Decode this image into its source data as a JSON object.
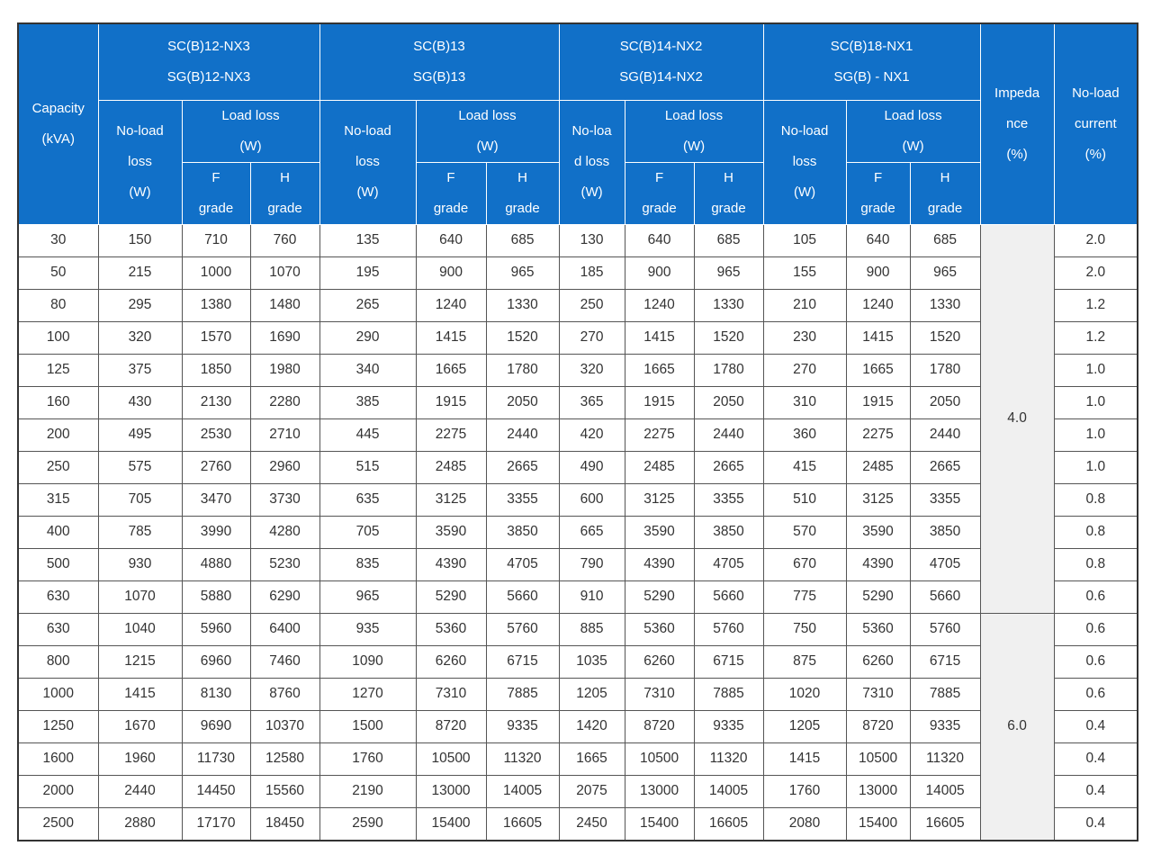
{
  "header": {
    "capacity": [
      "Capacity",
      "(kVA)"
    ],
    "groups": [
      {
        "models": [
          "SC(B)12-NX3",
          "SG(B)12-NX3"
        ],
        "no_load": [
          "No-load",
          "loss",
          "(W)"
        ],
        "load_loss": [
          "Load loss",
          "(W)"
        ],
        "f": [
          "F",
          "grade"
        ],
        "h": [
          "H",
          "grade"
        ]
      },
      {
        "models": [
          "SC(B)13",
          "SG(B)13"
        ],
        "no_load": [
          "No-load",
          "loss",
          "(W)"
        ],
        "load_loss": [
          "Load loss",
          "(W)"
        ],
        "f": [
          "F",
          "grade"
        ],
        "h": [
          "H",
          "grade"
        ]
      },
      {
        "models": [
          "SC(B)14-NX2",
          "SG(B)14-NX2"
        ],
        "no_load": [
          "No-loa",
          "d loss",
          "(W)"
        ],
        "load_loss": [
          "Load loss",
          "(W)"
        ],
        "f": [
          "F",
          "grade"
        ],
        "h": [
          "H",
          "grade"
        ]
      },
      {
        "models": [
          "SC(B)18-NX1",
          "SG(B) - NX1"
        ],
        "no_load": [
          "No-load",
          "loss",
          "(W)"
        ],
        "load_loss": [
          "Load loss",
          "(W)"
        ],
        "f": [
          "F",
          "grade"
        ],
        "h": [
          "H",
          "grade"
        ]
      }
    ],
    "impedance": [
      "Impeda",
      "nce",
      "(%)"
    ],
    "no_load_current": [
      "No-load",
      "current",
      "(%)"
    ]
  },
  "impedance": [
    "4.0",
    "6.0"
  ],
  "rows": [
    {
      "capacity": 30,
      "cells": [
        150,
        710,
        760,
        135,
        640,
        685,
        130,
        640,
        685,
        105,
        640,
        685
      ],
      "current": "2.0"
    },
    {
      "capacity": 50,
      "cells": [
        215,
        1000,
        1070,
        195,
        900,
        965,
        185,
        900,
        965,
        155,
        900,
        965
      ],
      "current": "2.0"
    },
    {
      "capacity": 80,
      "cells": [
        295,
        1380,
        1480,
        265,
        1240,
        1330,
        250,
        1240,
        1330,
        210,
        1240,
        1330
      ],
      "current": "1.2"
    },
    {
      "capacity": 100,
      "cells": [
        320,
        1570,
        1690,
        290,
        1415,
        1520,
        270,
        1415,
        1520,
        230,
        1415,
        1520
      ],
      "current": "1.2"
    },
    {
      "capacity": 125,
      "cells": [
        375,
        1850,
        1980,
        340,
        1665,
        1780,
        320,
        1665,
        1780,
        270,
        1665,
        1780
      ],
      "current": "1.0"
    },
    {
      "capacity": 160,
      "cells": [
        430,
        2130,
        2280,
        385,
        1915,
        2050,
        365,
        1915,
        2050,
        310,
        1915,
        2050
      ],
      "current": "1.0"
    },
    {
      "capacity": 200,
      "cells": [
        495,
        2530,
        2710,
        445,
        2275,
        2440,
        420,
        2275,
        2440,
        360,
        2275,
        2440
      ],
      "current": "1.0"
    },
    {
      "capacity": 250,
      "cells": [
        575,
        2760,
        2960,
        515,
        2485,
        2665,
        490,
        2485,
        2665,
        415,
        2485,
        2665
      ],
      "current": "1.0"
    },
    {
      "capacity": 315,
      "cells": [
        705,
        3470,
        3730,
        635,
        3125,
        3355,
        600,
        3125,
        3355,
        510,
        3125,
        3355
      ],
      "current": "0.8"
    },
    {
      "capacity": 400,
      "cells": [
        785,
        3990,
        4280,
        705,
        3590,
        3850,
        665,
        3590,
        3850,
        570,
        3590,
        3850
      ],
      "current": "0.8"
    },
    {
      "capacity": 500,
      "cells": [
        930,
        4880,
        5230,
        835,
        4390,
        4705,
        790,
        4390,
        4705,
        670,
        4390,
        4705
      ],
      "current": "0.8"
    },
    {
      "capacity": 630,
      "cells": [
        1070,
        5880,
        6290,
        965,
        5290,
        5660,
        910,
        5290,
        5660,
        775,
        5290,
        5660
      ],
      "current": "0.6"
    },
    {
      "capacity": 630,
      "cells": [
        1040,
        5960,
        6400,
        935,
        5360,
        5760,
        885,
        5360,
        5760,
        750,
        5360,
        5760
      ],
      "current": "0.6"
    },
    {
      "capacity": 800,
      "cells": [
        1215,
        6960,
        7460,
        1090,
        6260,
        6715,
        1035,
        6260,
        6715,
        875,
        6260,
        6715
      ],
      "current": "0.6"
    },
    {
      "capacity": 1000,
      "cells": [
        1415,
        8130,
        8760,
        1270,
        7310,
        7885,
        1205,
        7310,
        7885,
        1020,
        7310,
        7885
      ],
      "current": "0.6"
    },
    {
      "capacity": 1250,
      "cells": [
        1670,
        9690,
        10370,
        1500,
        8720,
        9335,
        1420,
        8720,
        9335,
        1205,
        8720,
        9335
      ],
      "current": "0.4"
    },
    {
      "capacity": 1600,
      "cells": [
        1960,
        11730,
        12580,
        1760,
        10500,
        11320,
        1665,
        10500,
        11320,
        1415,
        10500,
        11320
      ],
      "current": "0.4"
    },
    {
      "capacity": 2000,
      "cells": [
        2440,
        14450,
        15560,
        2190,
        13000,
        14005,
        2075,
        13000,
        14005,
        1760,
        13000,
        14005
      ],
      "current": "0.4"
    },
    {
      "capacity": 2500,
      "cells": [
        2880,
        17170,
        18450,
        2590,
        15400,
        16605,
        2450,
        15400,
        16605,
        2080,
        15400,
        16605
      ],
      "current": "0.4"
    }
  ]
}
